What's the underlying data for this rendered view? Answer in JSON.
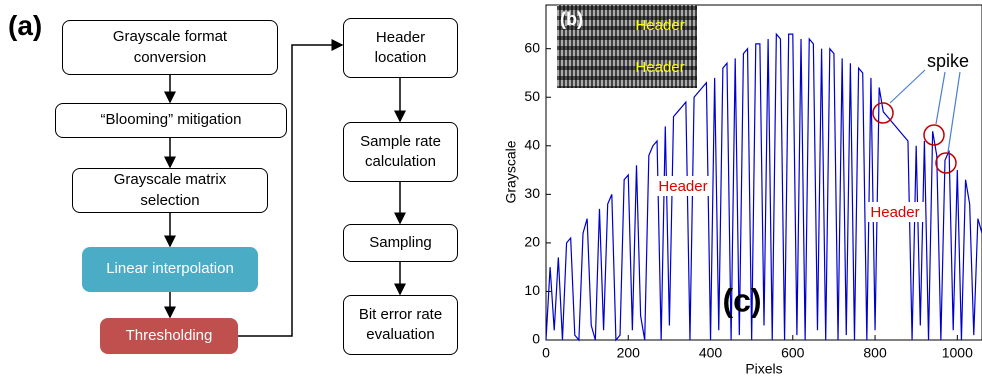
{
  "panel_labels": [
    "(a)",
    "(b)",
    "(c)"
  ],
  "flowchart": {
    "nodes": [
      {
        "label": "Grayscale format\nconversion"
      },
      {
        "label": "“Blooming” mitigation"
      },
      {
        "label": "Grayscale matrix\nselection"
      },
      {
        "label": "Linear interpolation"
      },
      {
        "label": "Thresholding"
      },
      {
        "label": "Header\nlocation"
      },
      {
        "label": "Sample rate\ncalculation"
      },
      {
        "label": "Sampling"
      },
      {
        "label": "Bit error rate\nevaluation"
      }
    ]
  },
  "chart_data": {
    "type": "line",
    "xlabel": "Pixels",
    "ylabel": "Grayscale",
    "color": "#0000cc",
    "inset_labels": [
      "Header",
      "Header"
    ],
    "annotations": [
      "Header",
      "Header",
      "spike"
    ],
    "xlim": [
      0,
      1060
    ],
    "ylim": [
      0,
      69
    ],
    "xticks": [
      0,
      200,
      400,
      600,
      800,
      1000
    ],
    "yticks": [
      0,
      10,
      20,
      30,
      40,
      50,
      60
    ],
    "x": [
      0,
      10,
      20,
      30,
      40,
      50,
      60,
      70,
      80,
      90,
      100,
      110,
      120,
      130,
      140,
      150,
      160,
      170,
      180,
      190,
      200,
      210,
      220,
      230,
      240,
      250,
      260,
      270,
      280,
      290,
      300,
      310,
      320,
      330,
      340,
      350,
      360,
      370,
      380,
      390,
      400,
      410,
      420,
      430,
      440,
      450,
      460,
      470,
      480,
      490,
      500,
      510,
      520,
      530,
      540,
      550,
      560,
      570,
      580,
      590,
      600,
      610,
      620,
      630,
      640,
      650,
      660,
      670,
      680,
      690,
      700,
      710,
      720,
      730,
      740,
      750,
      760,
      770,
      780,
      790,
      800,
      810,
      820,
      830,
      840,
      850,
      860,
      870,
      880,
      890,
      900,
      910,
      920,
      930,
      940,
      950,
      960,
      970,
      980,
      990,
      1000,
      1010,
      1020,
      1030,
      1040,
      1050,
      1060
    ],
    "values": [
      0,
      15,
      2,
      17,
      0,
      20,
      21,
      1,
      0,
      22,
      25,
      3,
      0,
      27,
      2,
      28,
      30,
      0,
      1,
      33,
      34,
      2,
      36,
      5,
      0,
      38,
      40,
      41,
      0,
      44,
      3,
      46,
      47,
      48,
      49,
      0,
      50,
      51,
      52,
      53,
      0,
      54,
      2,
      56,
      57,
      0,
      58,
      1,
      59,
      60,
      0,
      61,
      61,
      3,
      62,
      0,
      63,
      62,
      0,
      63,
      63,
      1,
      62,
      0,
      62,
      61,
      2,
      60,
      0,
      60,
      59,
      0,
      58,
      1,
      57,
      0,
      56,
      55,
      0,
      54,
      2,
      52,
      47,
      46,
      45,
      44,
      43,
      42,
      41,
      0,
      40,
      3,
      41,
      0,
      43,
      38,
      0,
      37,
      39,
      2,
      35,
      0,
      33,
      28,
      1,
      25,
      22
    ]
  }
}
